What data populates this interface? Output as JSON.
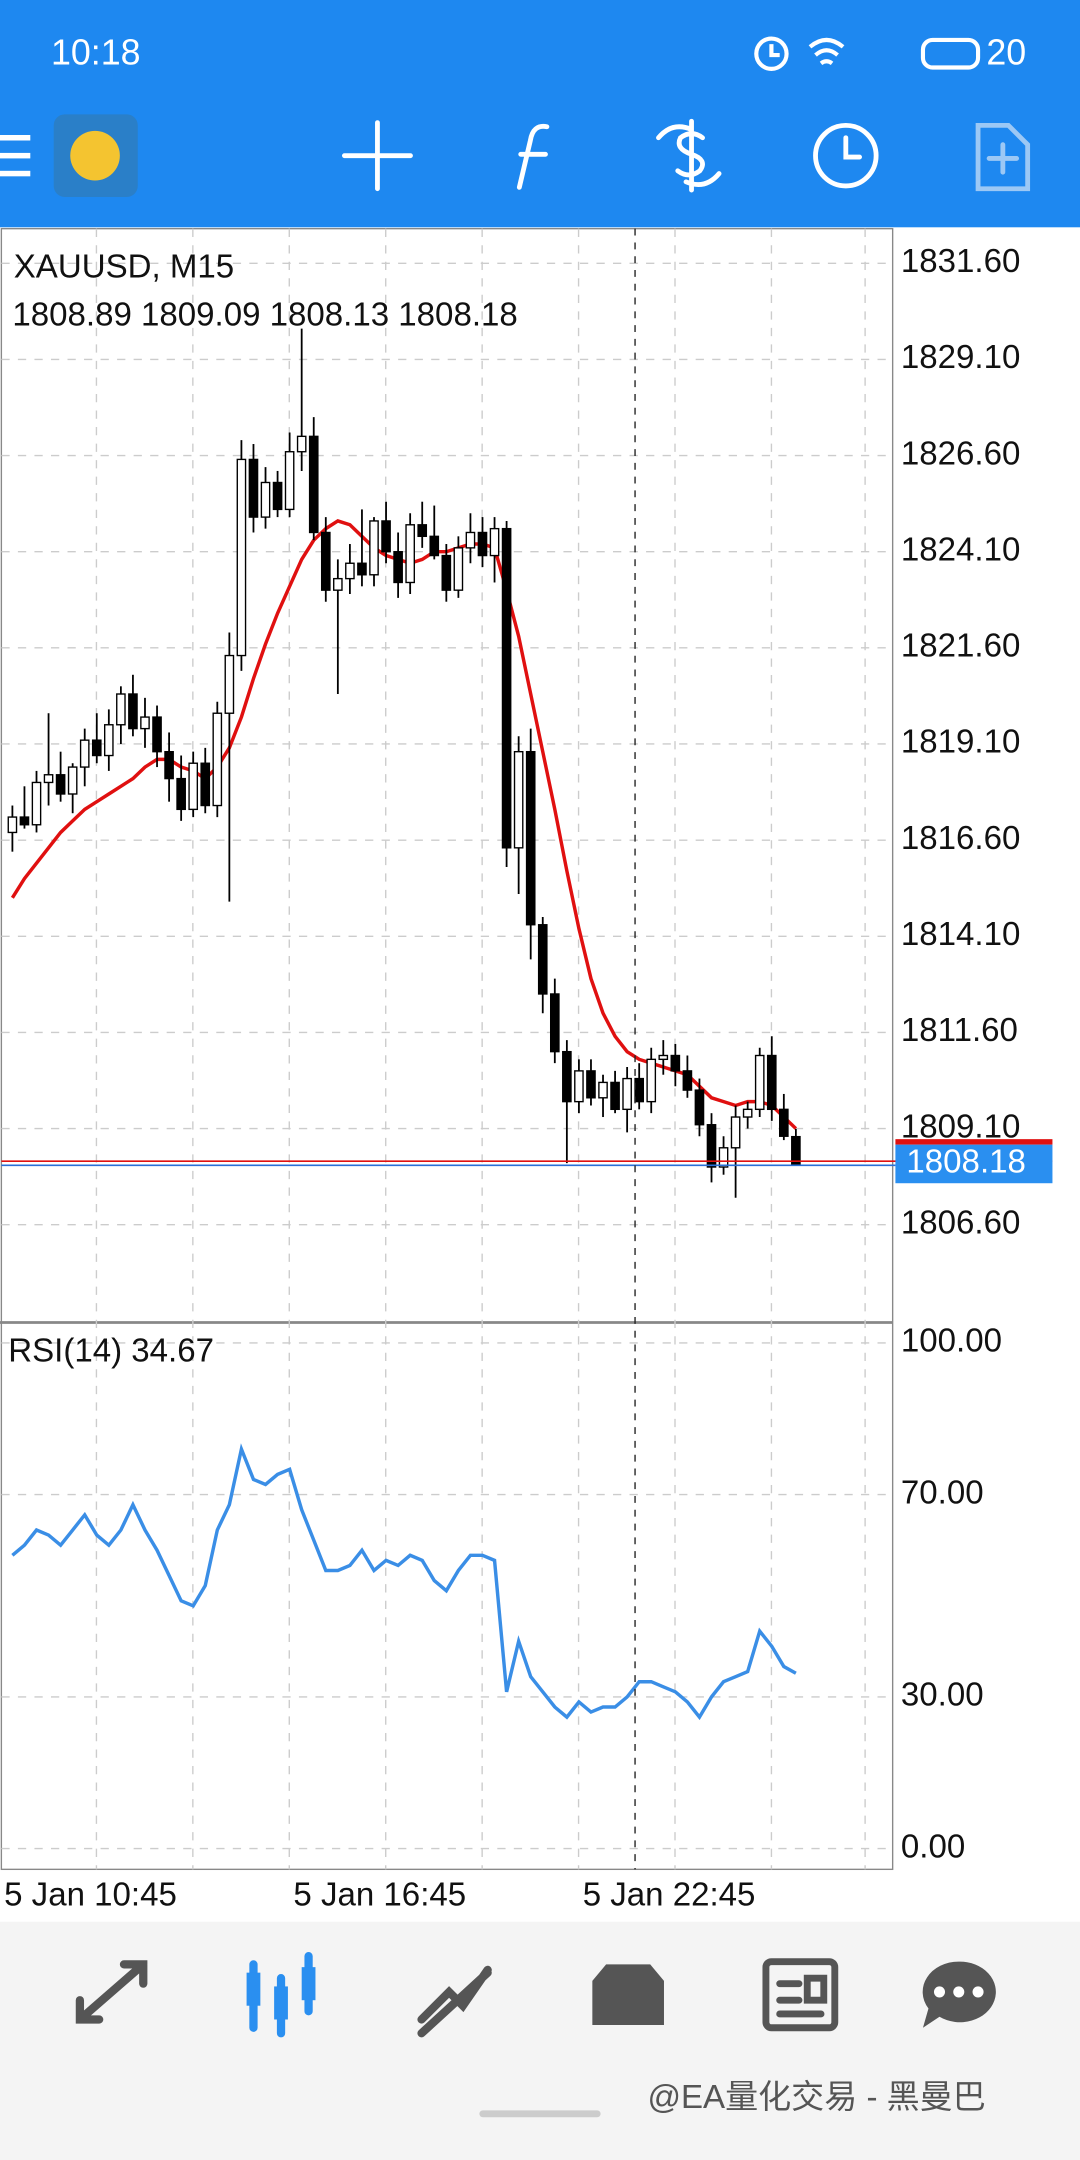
{
  "status_bar": {
    "time": "10:18",
    "battery": "20"
  },
  "chart_data": [
    {
      "type": "candlestick",
      "title": "XAUUSD, M15",
      "subtitle": "1808.89 1809.09 1808.13 1808.18",
      "ohlc": [
        [
          1816.8,
          1817.5,
          1816.3,
          1817.2
        ],
        [
          1817.2,
          1818.0,
          1816.9,
          1817.0
        ],
        [
          1817.0,
          1818.4,
          1816.8,
          1818.1
        ],
        [
          1818.1,
          1819.9,
          1817.5,
          1818.3
        ],
        [
          1818.3,
          1818.9,
          1817.6,
          1817.8
        ],
        [
          1817.8,
          1818.6,
          1817.3,
          1818.5
        ],
        [
          1818.5,
          1819.5,
          1818.0,
          1819.2
        ],
        [
          1819.2,
          1819.9,
          1818.6,
          1818.8
        ],
        [
          1818.8,
          1820.0,
          1818.4,
          1819.6
        ],
        [
          1819.6,
          1820.6,
          1819.1,
          1820.4
        ],
        [
          1820.4,
          1820.9,
          1819.3,
          1819.5
        ],
        [
          1819.5,
          1820.3,
          1819.0,
          1819.8
        ],
        [
          1819.8,
          1820.1,
          1818.5,
          1818.9
        ],
        [
          1818.9,
          1819.4,
          1817.6,
          1818.2
        ],
        [
          1818.2,
          1818.8,
          1817.1,
          1817.4
        ],
        [
          1817.4,
          1818.9,
          1817.2,
          1818.6
        ],
        [
          1818.6,
          1819.0,
          1817.3,
          1817.5
        ],
        [
          1817.5,
          1820.2,
          1817.2,
          1819.9
        ],
        [
          1819.9,
          1822.0,
          1815.0,
          1821.4
        ],
        [
          1821.4,
          1827.0,
          1821.0,
          1826.5
        ],
        [
          1826.5,
          1826.9,
          1824.6,
          1825.0
        ],
        [
          1825.0,
          1826.3,
          1824.7,
          1825.9
        ],
        [
          1825.9,
          1826.2,
          1825.0,
          1825.2
        ],
        [
          1825.2,
          1827.2,
          1825.0,
          1826.7
        ],
        [
          1826.7,
          1829.9,
          1826.2,
          1827.1
        ],
        [
          1827.1,
          1827.6,
          1824.4,
          1824.6
        ],
        [
          1824.6,
          1825.0,
          1822.8,
          1823.1
        ],
        [
          1823.1,
          1823.9,
          1820.4,
          1823.4
        ],
        [
          1823.4,
          1824.3,
          1823.0,
          1823.8
        ],
        [
          1823.8,
          1825.2,
          1823.2,
          1823.5
        ],
        [
          1823.5,
          1825.0,
          1823.2,
          1824.9
        ],
        [
          1824.9,
          1825.4,
          1823.8,
          1824.1
        ],
        [
          1824.1,
          1824.6,
          1822.9,
          1823.3
        ],
        [
          1823.3,
          1825.1,
          1823.0,
          1824.8
        ],
        [
          1824.8,
          1825.4,
          1824.2,
          1824.5
        ],
        [
          1824.5,
          1825.3,
          1823.9,
          1824.0
        ],
        [
          1824.0,
          1824.3,
          1822.8,
          1823.1
        ],
        [
          1823.1,
          1824.5,
          1822.9,
          1824.2
        ],
        [
          1824.2,
          1825.1,
          1823.8,
          1824.6
        ],
        [
          1824.6,
          1825.0,
          1823.7,
          1824.0
        ],
        [
          1824.0,
          1825.0,
          1823.3,
          1824.7
        ],
        [
          1824.7,
          1824.9,
          1815.9,
          1816.4
        ],
        [
          1816.4,
          1819.3,
          1815.2,
          1818.9
        ],
        [
          1818.9,
          1819.5,
          1813.5,
          1814.4
        ],
        [
          1814.4,
          1814.6,
          1812.1,
          1812.6
        ],
        [
          1812.6,
          1813.0,
          1810.8,
          1811.1
        ],
        [
          1811.1,
          1811.4,
          1808.2,
          1809.8
        ],
        [
          1809.8,
          1810.9,
          1809.5,
          1810.6
        ],
        [
          1810.6,
          1810.9,
          1809.7,
          1809.9
        ],
        [
          1809.9,
          1810.5,
          1809.4,
          1810.3
        ],
        [
          1810.3,
          1810.6,
          1809.5,
          1809.6
        ],
        [
          1809.6,
          1810.7,
          1809.0,
          1810.4
        ],
        [
          1810.4,
          1810.8,
          1809.6,
          1809.8
        ],
        [
          1809.8,
          1811.2,
          1809.5,
          1810.9
        ],
        [
          1810.9,
          1811.4,
          1810.5,
          1811.0
        ],
        [
          1811.0,
          1811.3,
          1810.2,
          1810.6
        ],
        [
          1810.6,
          1811.0,
          1809.9,
          1810.1
        ],
        [
          1810.1,
          1810.4,
          1808.9,
          1809.2
        ],
        [
          1809.2,
          1809.5,
          1807.7,
          1808.1
        ],
        [
          1808.1,
          1808.9,
          1807.9,
          1808.6
        ],
        [
          1808.6,
          1809.7,
          1807.3,
          1809.4
        ],
        [
          1809.4,
          1809.8,
          1809.1,
          1809.6
        ],
        [
          1809.6,
          1811.2,
          1809.4,
          1811.0
        ],
        [
          1811.0,
          1811.5,
          1809.3,
          1809.6
        ],
        [
          1809.6,
          1810.0,
          1808.8,
          1808.9
        ],
        [
          1808.89,
          1809.09,
          1808.13,
          1808.18
        ]
      ],
      "up_color": "#ffffff",
      "down_color": "#000000",
      "series": [
        {
          "color": "#e01010",
          "values": [
            1815.1,
            1815.6,
            1816.0,
            1816.4,
            1816.8,
            1817.1,
            1817.4,
            1817.6,
            1817.8,
            1818.0,
            1818.2,
            1818.5,
            1818.7,
            1818.7,
            1818.5,
            1818.4,
            1818.2,
            1818.5,
            1819.0,
            1819.8,
            1820.8,
            1821.7,
            1822.5,
            1823.2,
            1823.9,
            1824.4,
            1824.7,
            1824.9,
            1824.8,
            1824.5,
            1824.2,
            1824.0,
            1823.9,
            1823.8,
            1823.9,
            1824.1,
            1824.1,
            1824.2,
            1824.3,
            1824.3,
            1824.2,
            1823.1,
            1821.9,
            1820.4,
            1818.9,
            1817.4,
            1815.8,
            1814.3,
            1813.0,
            1812.1,
            1811.5,
            1811.1,
            1810.9,
            1810.8,
            1810.7,
            1810.6,
            1810.5,
            1810.2,
            1809.9,
            1809.8,
            1809.7,
            1809.8,
            1809.8,
            1809.7,
            1809.4,
            1809.1
          ]
        }
      ],
      "current_price": {
        "value": 1808.18,
        "label": "1808.18"
      },
      "ylim": [
        1804.13,
        1832.5
      ],
      "yticks": [
        {
          "value": 1831.6,
          "label": "1831.60"
        },
        {
          "value": 1829.1,
          "label": "1829.10"
        },
        {
          "value": 1826.6,
          "label": "1826.60"
        },
        {
          "value": 1824.1,
          "label": "1824.10"
        },
        {
          "value": 1821.6,
          "label": "1821.60"
        },
        {
          "value": 1819.1,
          "label": "1819.10"
        },
        {
          "value": 1816.6,
          "label": "1816.60"
        },
        {
          "value": 1814.1,
          "label": "1814.10"
        },
        {
          "value": 1811.6,
          "label": "1811.60"
        },
        {
          "value": 1809.1,
          "label": "1809.10"
        },
        {
          "value": 1806.6,
          "label": "1806.60"
        }
      ],
      "grid": true
    },
    {
      "type": "line",
      "title": "RSI(14) 34.67",
      "categories": [
        "5 Jan 10:45",
        null,
        null,
        null,
        null,
        null,
        null,
        null,
        null,
        null,
        null,
        null,
        null,
        null,
        null,
        null,
        null,
        null,
        null,
        null,
        null,
        null,
        null,
        null,
        "5 Jan 16:45",
        null,
        null,
        null,
        null,
        null,
        null,
        null,
        null,
        null,
        null,
        null,
        null,
        null,
        null,
        null,
        null,
        null,
        null,
        null,
        null,
        null,
        null,
        null,
        "5 Jan 22:45",
        null,
        null,
        null,
        null,
        null,
        null,
        null,
        null,
        null,
        null,
        null,
        null,
        null,
        null,
        null,
        null,
        null
      ],
      "series": [
        {
          "color": "#3a8ee6",
          "values": [
            58,
            60,
            63,
            62,
            60,
            63,
            66,
            62,
            60,
            63,
            68,
            63,
            59,
            54,
            49,
            48,
            52,
            63,
            68,
            79,
            73,
            72,
            74,
            75,
            67,
            61,
            55,
            55,
            56,
            59,
            55,
            57,
            56,
            58,
            57,
            53,
            51,
            55,
            58,
            58,
            57,
            31,
            41,
            34,
            31,
            28,
            26,
            29,
            27,
            28,
            28,
            30,
            33,
            33,
            32,
            31,
            29,
            26,
            30,
            33,
            34,
            35,
            43,
            40,
            36,
            34.67
          ]
        }
      ],
      "ylim": [
        -4.1,
        103.5
      ],
      "yticks": [
        {
          "value": 100,
          "label": "100.00"
        },
        {
          "value": 70,
          "label": "70.00"
        },
        {
          "value": 30,
          "label": "30.00"
        },
        {
          "value": 0,
          "label": "0.00"
        }
      ],
      "grid": true
    }
  ],
  "watermark": "@EA量化交易 - 黑曼巴"
}
